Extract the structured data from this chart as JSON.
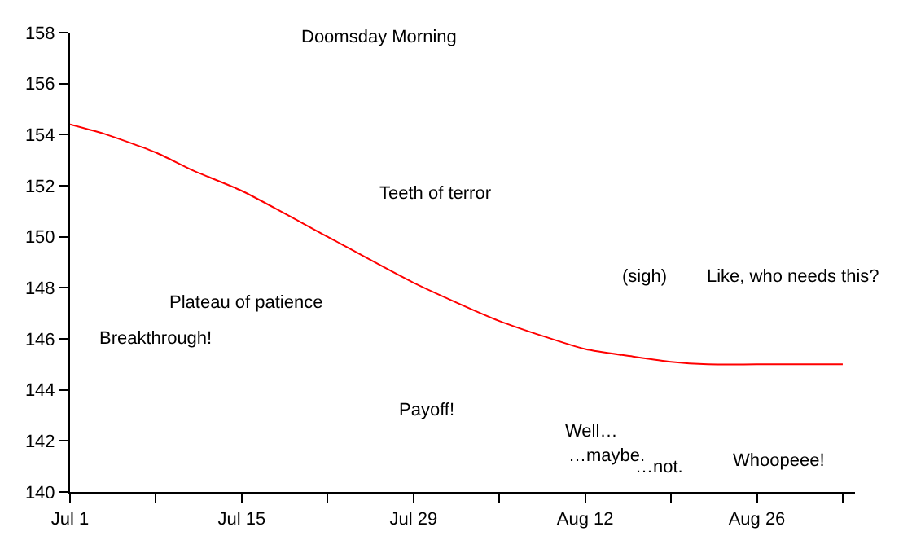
{
  "chart_data": {
    "type": "line",
    "x": [
      "--07-01",
      "--07-04",
      "--07-08",
      "--07-11",
      "--07-15",
      "--07-22",
      "--07-29",
      "--08-05",
      "--08-12",
      "--08-16",
      "--08-19",
      "--08-22",
      "--08-26",
      "--09-02"
    ],
    "series": [
      {
        "color": "#ff0000",
        "values": [
          154.4,
          154.0,
          153.3,
          152.6,
          151.8,
          150.0,
          148.2,
          146.7,
          145.6,
          145.3,
          145.1,
          145.0,
          145.0,
          145.0
        ]
      }
    ],
    "xlim": [
      "--07-01",
      "--09-03"
    ],
    "xticks": [
      {
        "value": "--07-01",
        "label": "Jul 1"
      },
      {
        "value": "--07-08",
        "label": null
      },
      {
        "value": "--07-15",
        "label": "Jul 15"
      },
      {
        "value": "--07-22",
        "label": null
      },
      {
        "value": "--07-29",
        "label": "Jul 29"
      },
      {
        "value": "--08-05",
        "label": null
      },
      {
        "value": "--08-12",
        "label": "Aug 12"
      },
      {
        "value": "--08-19",
        "label": null
      },
      {
        "value": "--08-26",
        "label": "Aug 26"
      },
      {
        "value": "--09-02",
        "label": null
      }
    ],
    "ylim": [
      140,
      158
    ],
    "yticks": [
      140,
      142,
      144,
      146,
      148,
      150,
      152,
      154,
      156,
      158
    ],
    "marker": "none",
    "line_style": "solid",
    "annotations": [
      "Doomsday Morning",
      "Teeth of terror",
      "Plateau of patience",
      "Breakthrough!",
      "Payoff!",
      "Well…",
      "…maybe.",
      "…not.",
      "(sigh)",
      "Like, who needs this?",
      "Whoopeee!"
    ]
  }
}
